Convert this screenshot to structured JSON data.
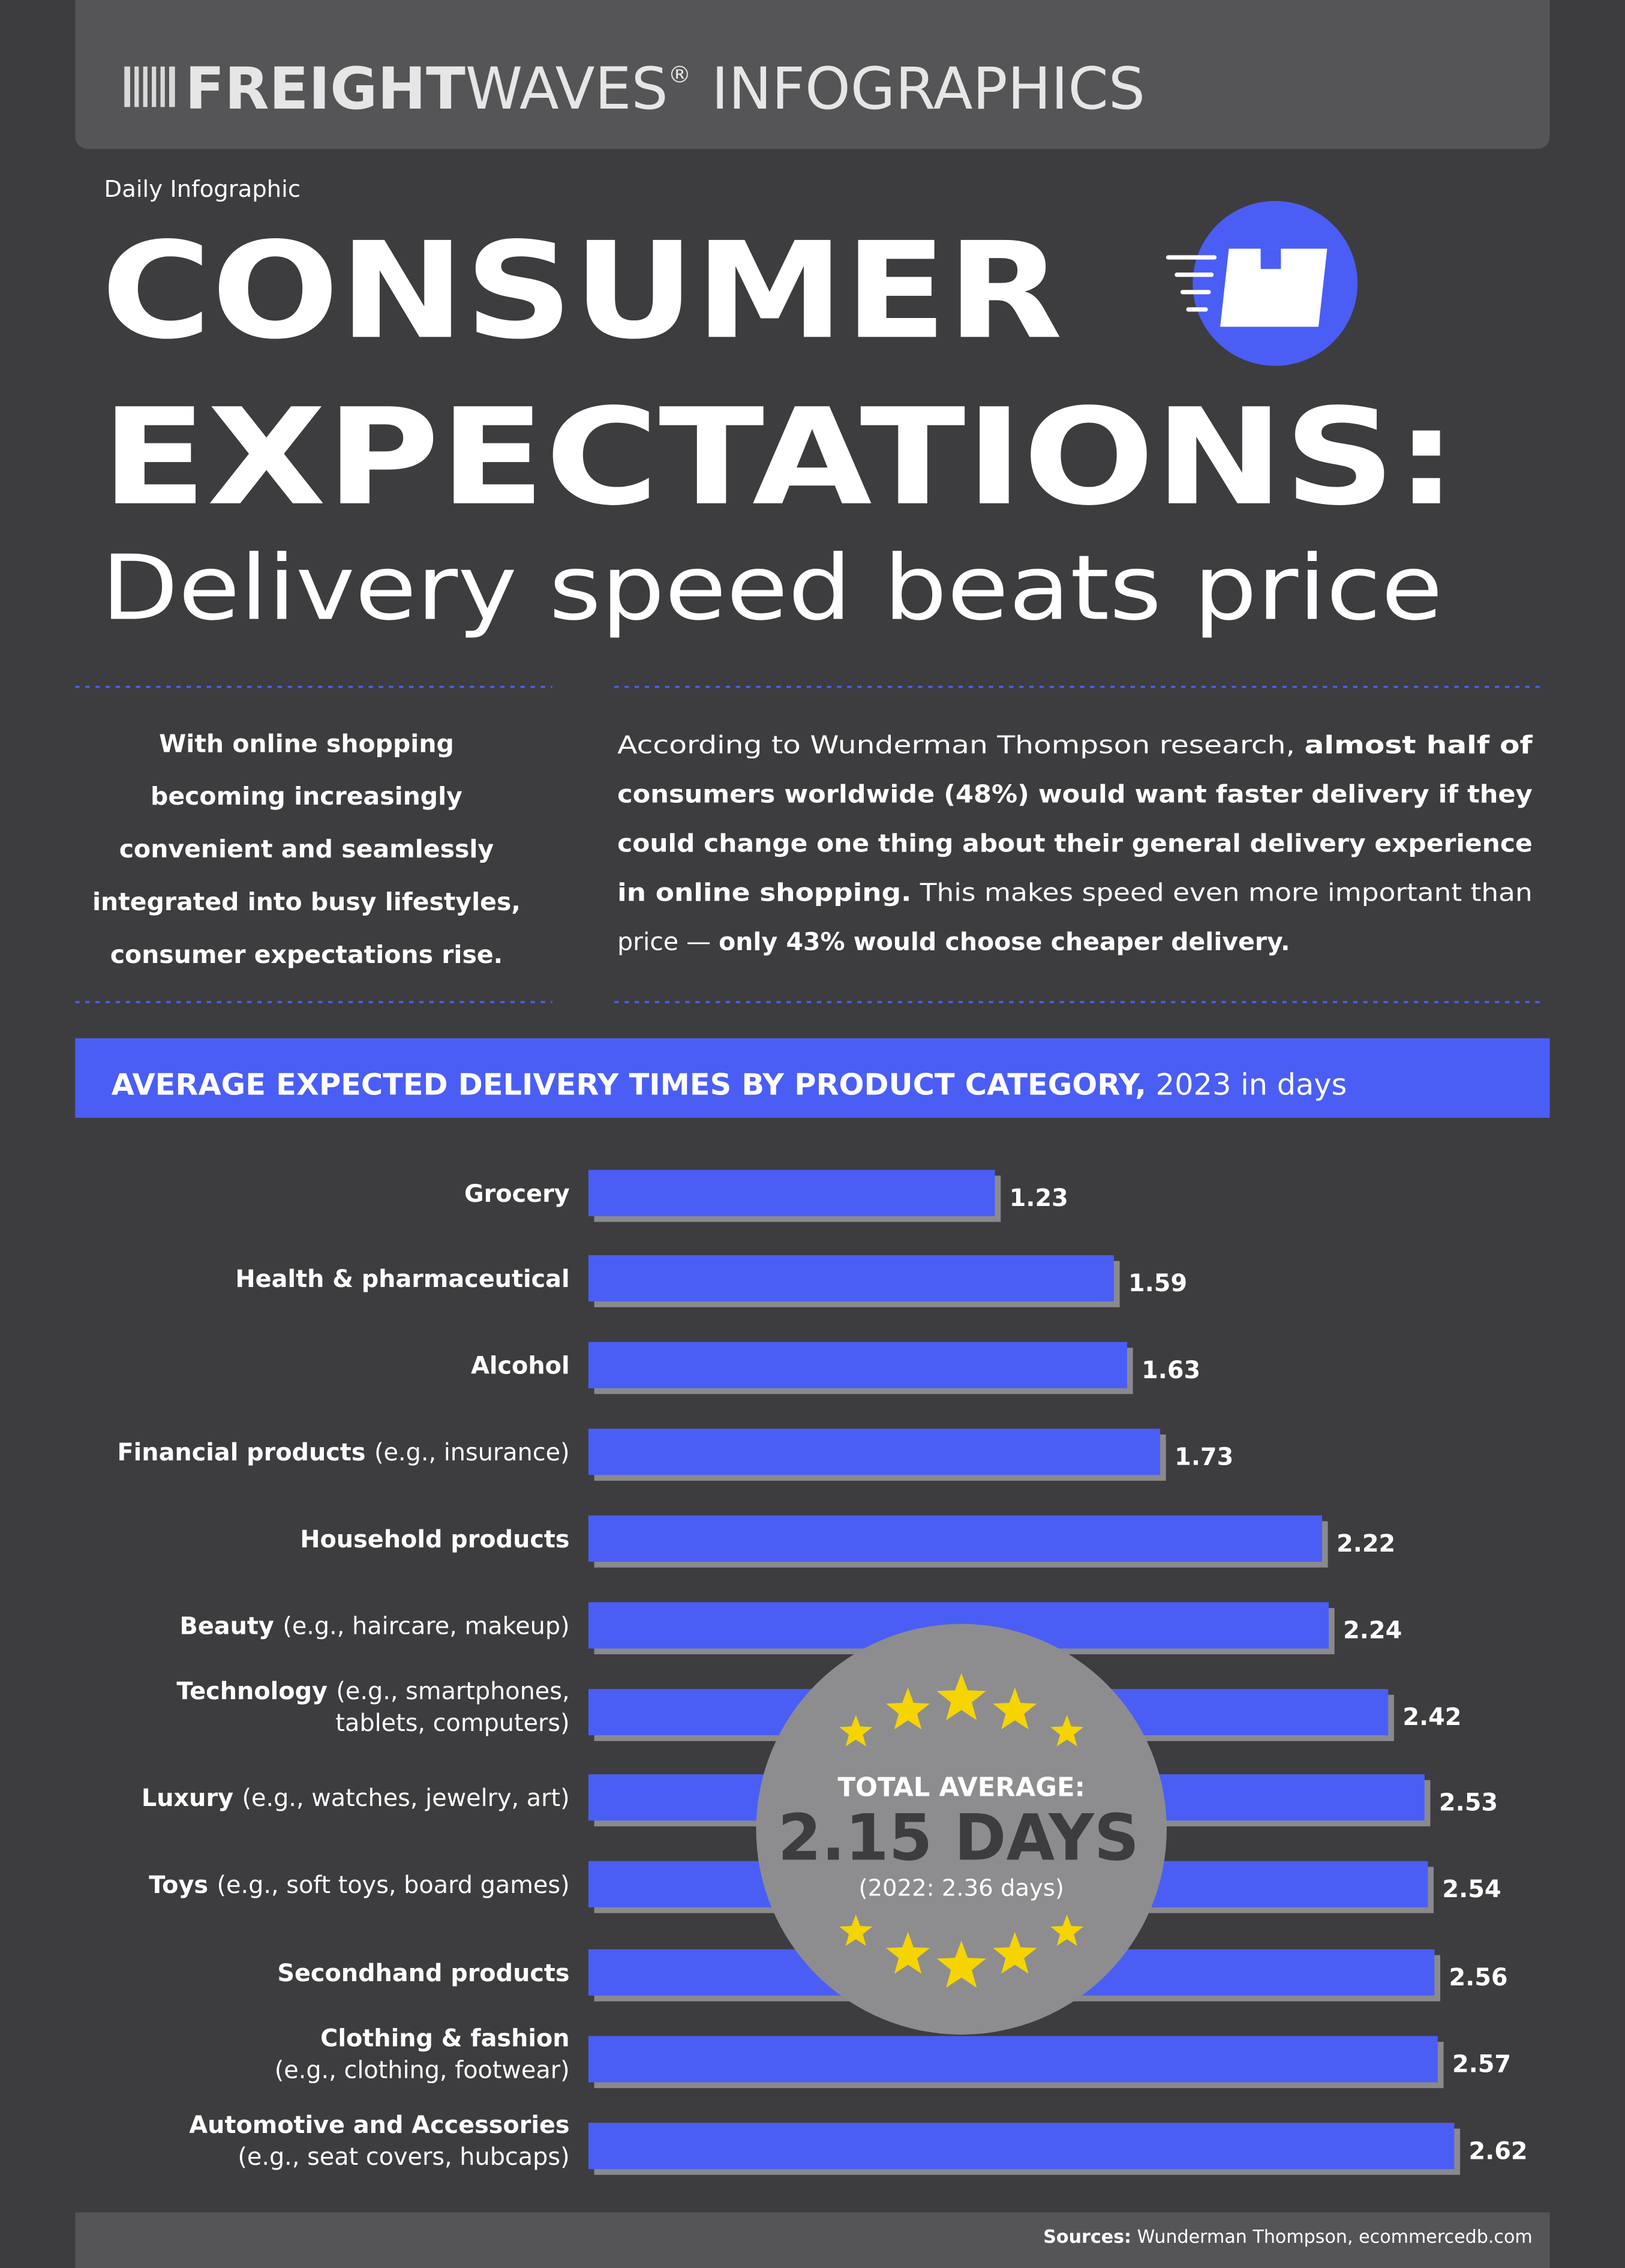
{
  "header": {
    "brand_bold": "FREIGHT",
    "brand_light": "WAVES",
    "registered": "®",
    "title": "INFOGRAPHICS"
  },
  "tag": "Daily Infographic",
  "title_lines": [
    "CONSUMER",
    "EXPECTATIONS:"
  ],
  "subtitle": "Delivery speed beats price",
  "intro_lines": [
    "With online shopping",
    "becoming increasingly",
    "convenient and seamlessly",
    "integrated into busy lifestyles,",
    "consumer expectations rise."
  ],
  "paragraph_lines": [
    [
      {
        "text": "According to Wunderman Thompson research, ",
        "bold": false
      },
      {
        "text": "almost half of",
        "bold": true
      }
    ],
    [
      {
        "text": "consumers worldwide (48%) would want faster delivery if they",
        "bold": true
      }
    ],
    [
      {
        "text": "could change one thing about their general delivery experience",
        "bold": true
      }
    ],
    [
      {
        "text": "in online shopping.",
        "bold": true
      },
      {
        "text": " This makes speed even more important than",
        "bold": false
      }
    ],
    [
      {
        "text": "price — ",
        "bold": false
      },
      {
        "text": "only 43% would choose cheaper delivery.",
        "bold": true
      }
    ]
  ],
  "chart_data": {
    "type": "bar",
    "orientation": "horizontal",
    "title": "AVERAGE EXPECTED DELIVERY TIMES BY PRODUCT CATEGORY,",
    "subtitle": " 2023 in days",
    "categories": [
      "Grocery",
      "Health & pharmaceutical",
      "Alcohol",
      "Financial products",
      "Household products",
      "Beauty",
      "Technology",
      "Luxury",
      "Toys",
      "Secondhand products",
      "Clothing & fashion",
      "Automotive and Accessories"
    ],
    "category_notes": [
      null,
      null,
      null,
      [
        "(e.g., insurance)"
      ],
      null,
      [
        "(e.g., haircare, makeup)"
      ],
      [
        "(e.g., smartphones,",
        "tablets, computers)"
      ],
      [
        "(e.g., watches, jewelry, art)"
      ],
      [
        "(e.g., soft toys, board games)"
      ],
      null,
      [
        "(e.g., clothing, footwear)"
      ],
      [
        "(e.g., seat covers, hubcaps)"
      ]
    ],
    "values": [
      1.23,
      1.59,
      1.63,
      1.73,
      2.22,
      2.24,
      2.42,
      2.53,
      2.54,
      2.56,
      2.57,
      2.62
    ],
    "color": "#4a5ef5",
    "shadow_color": "#8a8a8c"
  },
  "total_average": {
    "label": "TOTAL AVERAGE:",
    "value": "2.15 DAYS",
    "previous": "(2022: 2.36 days)"
  },
  "sources": {
    "label": "Sources:",
    "text": " Wunderman Thompson, ecommercedb.com"
  }
}
